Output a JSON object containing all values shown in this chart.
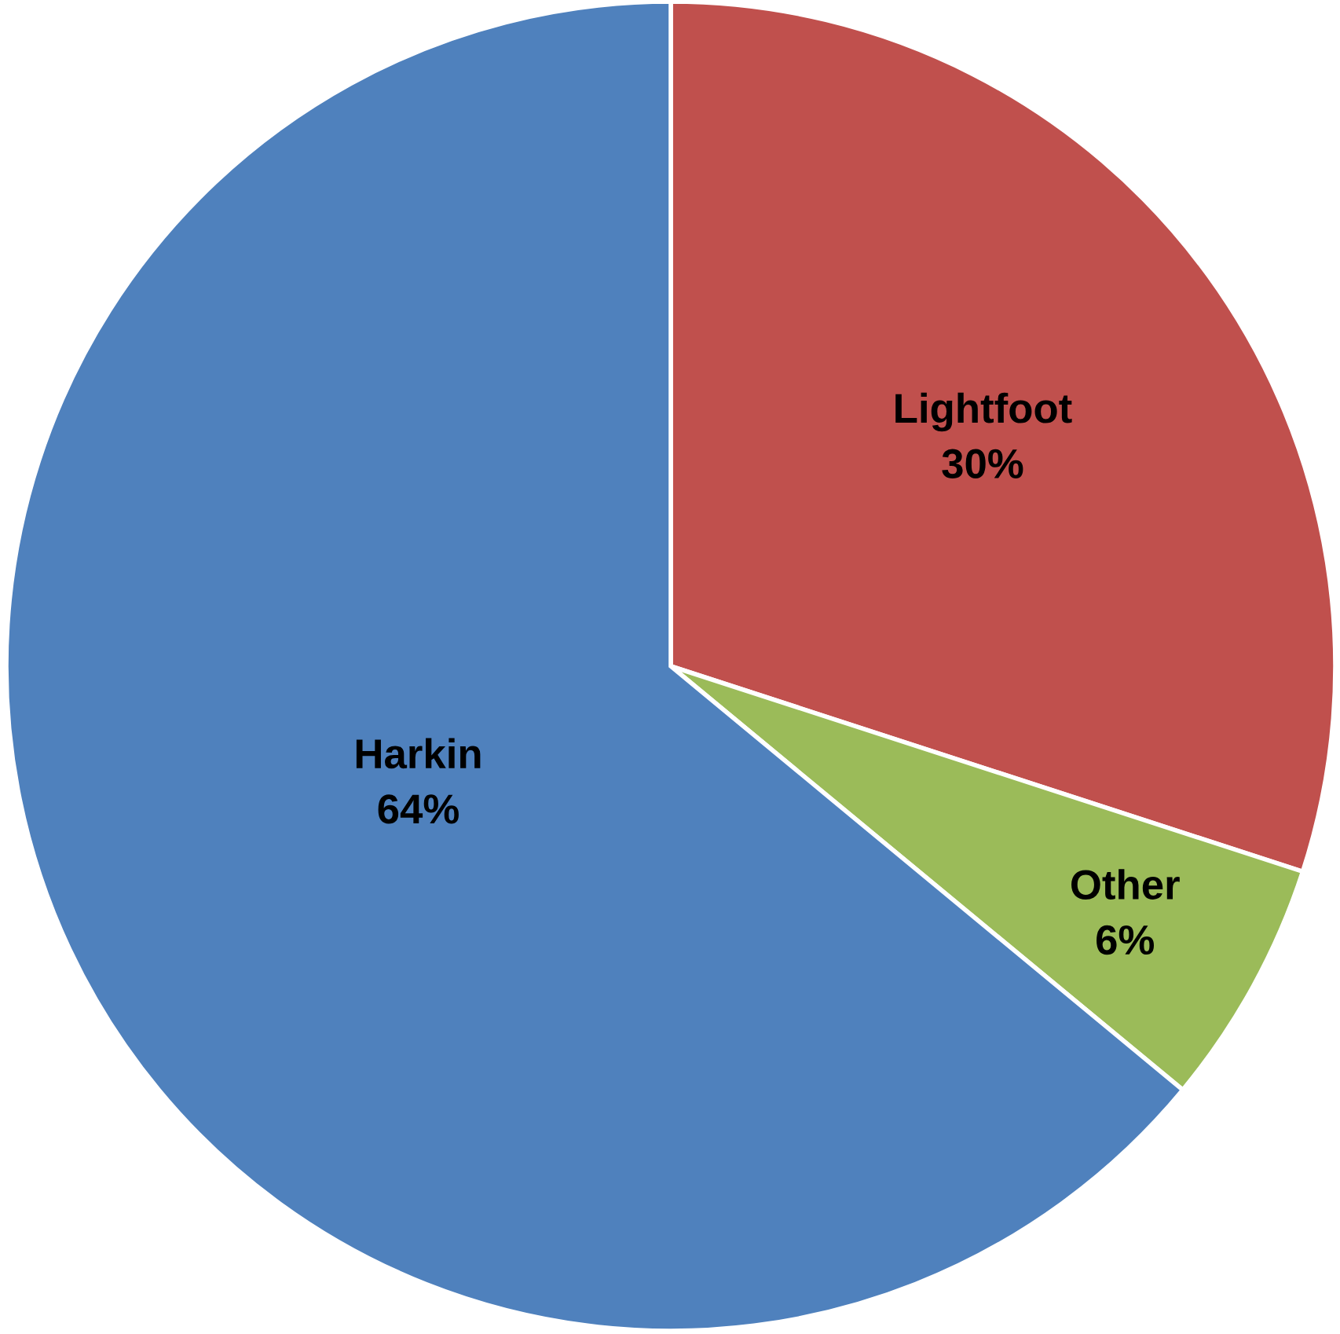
{
  "chart_data": {
    "type": "pie",
    "categories": [
      "Lightfoot",
      "Other",
      "Harkin"
    ],
    "values": [
      30,
      6,
      64
    ],
    "colors": [
      "#c0504d",
      "#9bbb59",
      "#4f81bd"
    ],
    "value_labels": [
      "30%",
      "6%",
      "64%"
    ]
  }
}
